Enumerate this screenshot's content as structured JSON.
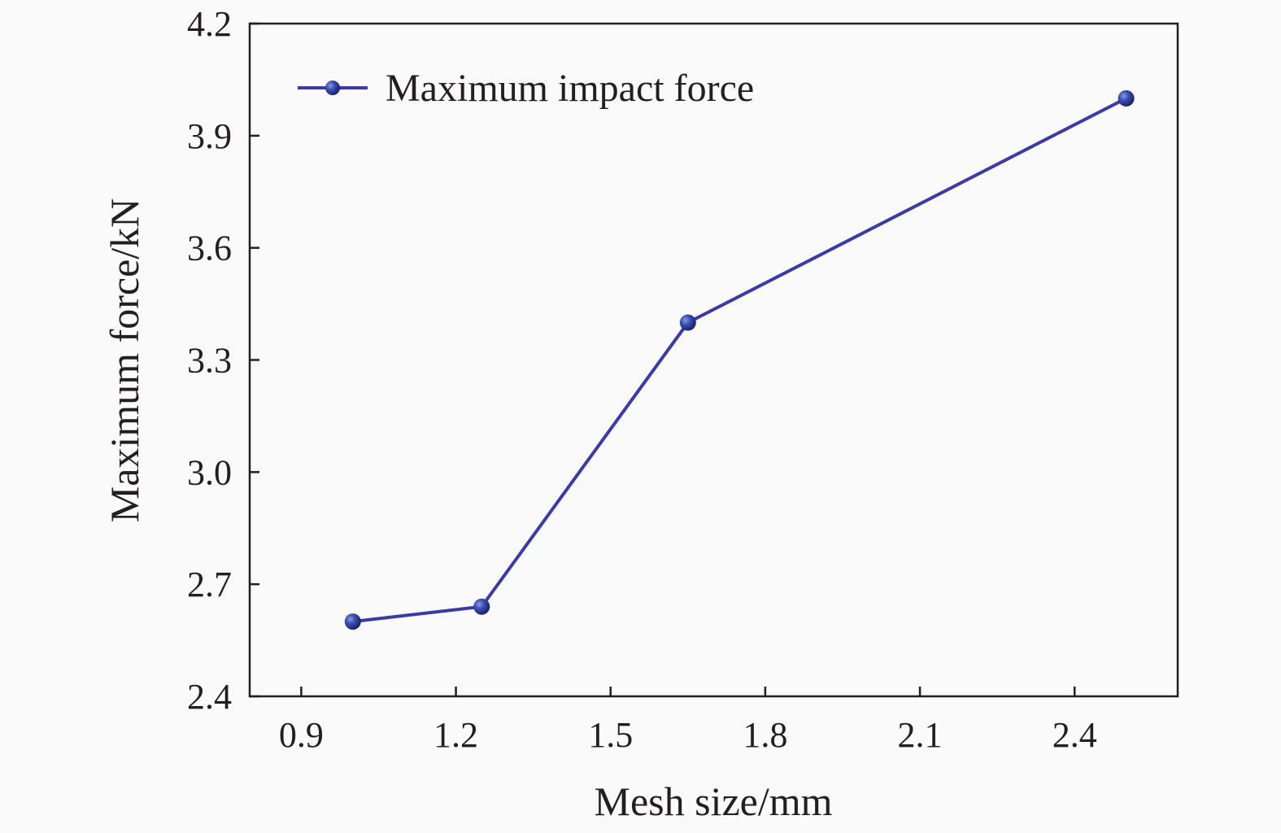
{
  "chart_data": {
    "type": "line",
    "xlabel": "Mesh size/mm",
    "ylabel": "Maximum force/kN",
    "xlim": [
      0.8,
      2.6
    ],
    "ylim": [
      2.4,
      4.2
    ],
    "x_ticks": [
      "0.9",
      "1.2",
      "1.5",
      "1.8",
      "2.1",
      "2.4"
    ],
    "y_ticks": [
      "2.4",
      "2.7",
      "3.0",
      "3.3",
      "3.6",
      "3.9",
      "4.2"
    ],
    "grid": false,
    "legend_position": "top-left",
    "series": [
      {
        "name": "Maximum impact force",
        "color": "#3a3aa8",
        "x": [
          1.0,
          1.25,
          1.65,
          2.5
        ],
        "y": [
          2.6,
          2.64,
          3.4,
          4.0
        ]
      }
    ]
  }
}
